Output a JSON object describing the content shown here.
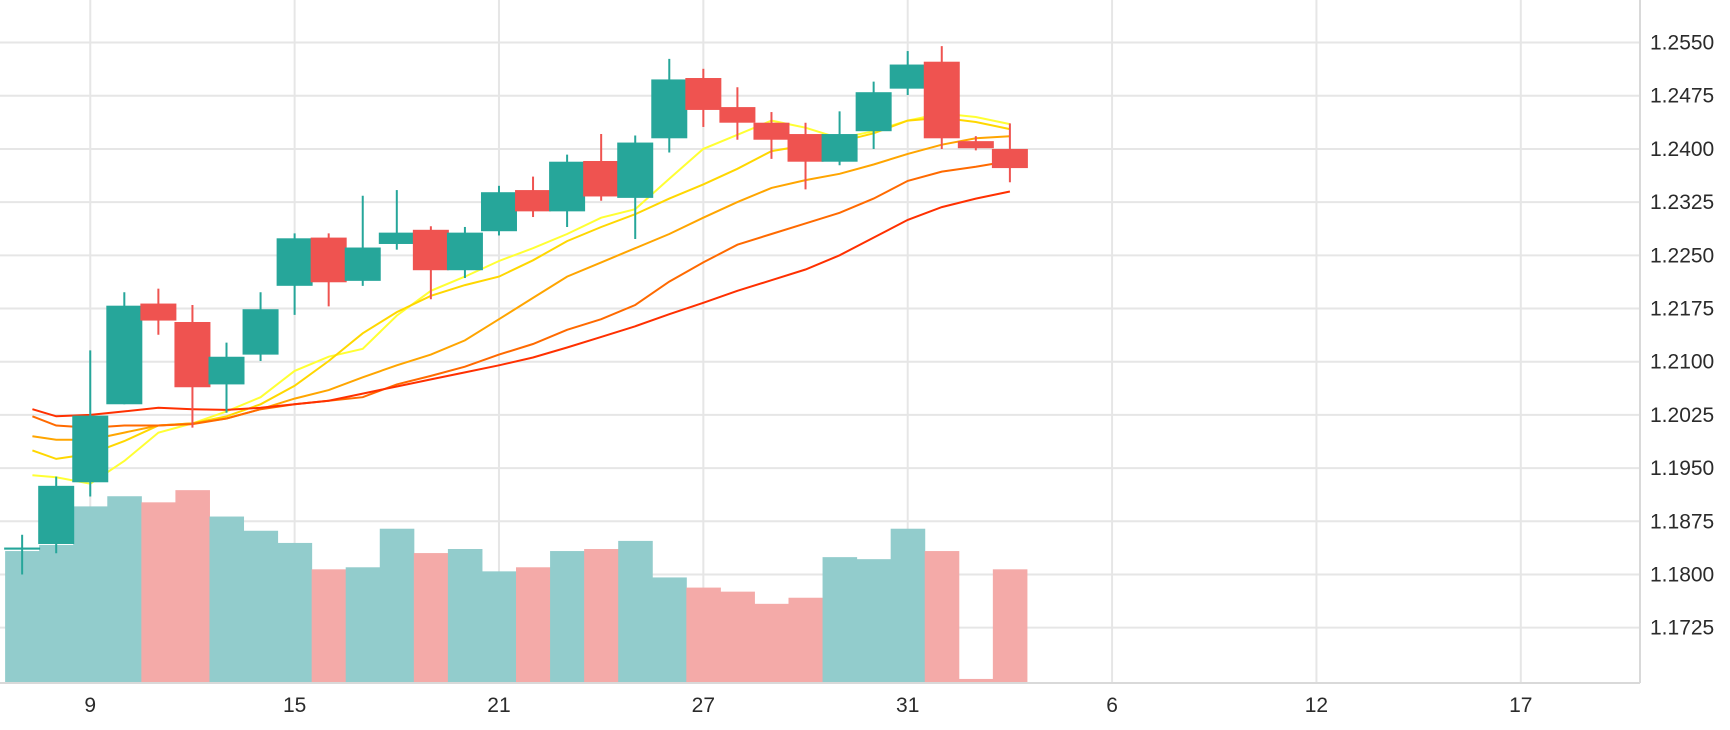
{
  "chart_data": {
    "type": "candlestick",
    "x_tick_labels": [
      "9",
      "15",
      "21",
      "27",
      "31",
      "6",
      "12",
      "17"
    ],
    "x_tick_positions": [
      2,
      8,
      14,
      20,
      26,
      32,
      38,
      44
    ],
    "x_range": [
      -0.65,
      47.5
    ],
    "y_ticks": [
      "1.2550",
      "1.2475",
      "1.2400",
      "1.2325",
      "1.2250",
      "1.2175",
      "1.2100",
      "1.2025",
      "1.1950",
      "1.1875",
      "1.1800",
      "1.1725"
    ],
    "y_range": [
      1.1647,
      1.261
    ],
    "grid": true,
    "colors": {
      "up": "#26a69a",
      "down": "#ef5350",
      "up_volume": "#92cccc",
      "down_volume": "#f4aaa8"
    },
    "candles": [
      {
        "i": 0,
        "open": 1.1835,
        "high": 1.1856,
        "low": 1.18,
        "close": 1.1838
      },
      {
        "i": 1,
        "open": 1.1843,
        "high": 1.1938,
        "low": 1.183,
        "close": 1.1925
      },
      {
        "i": 2,
        "open": 1.193,
        "high": 1.2116,
        "low": 1.191,
        "close": 1.2024
      },
      {
        "i": 3,
        "open": 1.204,
        "high": 1.2198,
        "low": 1.204,
        "close": 1.2179
      },
      {
        "i": 4,
        "open": 1.2182,
        "high": 1.2203,
        "low": 1.2138,
        "close": 1.2158
      },
      {
        "i": 5,
        "open": 1.2156,
        "high": 1.218,
        "low": 1.2007,
        "close": 1.2064
      },
      {
        "i": 6,
        "open": 1.2068,
        "high": 1.2127,
        "low": 1.2028,
        "close": 1.2107
      },
      {
        "i": 7,
        "open": 1.211,
        "high": 1.2198,
        "low": 1.2101,
        "close": 1.2174
      },
      {
        "i": 8,
        "open": 1.2207,
        "high": 1.2281,
        "low": 1.2166,
        "close": 1.2274
      },
      {
        "i": 9,
        "open": 1.2275,
        "high": 1.2281,
        "low": 1.2178,
        "close": 1.2212
      },
      {
        "i": 10,
        "open": 1.2214,
        "high": 1.2334,
        "low": 1.2207,
        "close": 1.2261
      },
      {
        "i": 11,
        "open": 1.2266,
        "high": 1.2342,
        "low": 1.2258,
        "close": 1.2282
      },
      {
        "i": 12,
        "open": 1.2286,
        "high": 1.2291,
        "low": 1.2188,
        "close": 1.2229
      },
      {
        "i": 13,
        "open": 1.2229,
        "high": 1.229,
        "low": 1.2218,
        "close": 1.2282
      },
      {
        "i": 14,
        "open": 1.2284,
        "high": 1.2348,
        "low": 1.2278,
        "close": 1.2339
      },
      {
        "i": 15,
        "open": 1.2342,
        "high": 1.2361,
        "low": 1.2304,
        "close": 1.2312
      },
      {
        "i": 16,
        "open": 1.2312,
        "high": 1.2392,
        "low": 1.229,
        "close": 1.2382
      },
      {
        "i": 17,
        "open": 1.2383,
        "high": 1.2421,
        "low": 1.2327,
        "close": 1.2333
      },
      {
        "i": 18,
        "open": 1.2331,
        "high": 1.2419,
        "low": 1.2273,
        "close": 1.2409
      },
      {
        "i": 19,
        "open": 1.2415,
        "high": 1.2527,
        "low": 1.2395,
        "close": 1.2498
      },
      {
        "i": 20,
        "open": 1.25,
        "high": 1.2513,
        "low": 1.2431,
        "close": 1.2455
      },
      {
        "i": 21,
        "open": 1.2459,
        "high": 1.2487,
        "low": 1.2413,
        "close": 1.2437
      },
      {
        "i": 22,
        "open": 1.2437,
        "high": 1.2452,
        "low": 1.2386,
        "close": 1.2413
      },
      {
        "i": 23,
        "open": 1.2421,
        "high": 1.2437,
        "low": 1.2343,
        "close": 1.2382
      },
      {
        "i": 24,
        "open": 1.2382,
        "high": 1.2453,
        "low": 1.2377,
        "close": 1.2421
      },
      {
        "i": 25,
        "open": 1.2425,
        "high": 1.2495,
        "low": 1.24,
        "close": 1.248
      },
      {
        "i": 26,
        "open": 1.2485,
        "high": 1.2538,
        "low": 1.2476,
        "close": 1.2519
      },
      {
        "i": 27,
        "open": 1.2523,
        "high": 1.2545,
        "low": 1.24,
        "close": 1.2415
      },
      {
        "i": 28,
        "open": 1.2411,
        "high": 1.2418,
        "low": 1.2398,
        "close": 1.2401
      },
      {
        "i": 29,
        "open": 1.24,
        "high": 1.2436,
        "low": 1.2353,
        "close": 1.2373
      }
    ],
    "volume": [
      {
        "i": 0,
        "level": 0.65,
        "dir": "up"
      },
      {
        "i": 1,
        "level": 0.68,
        "dir": "up"
      },
      {
        "i": 2,
        "level": 0.87,
        "dir": "up"
      },
      {
        "i": 3,
        "level": 0.92,
        "dir": "up"
      },
      {
        "i": 4,
        "level": 0.89,
        "dir": "down"
      },
      {
        "i": 5,
        "level": 0.95,
        "dir": "down"
      },
      {
        "i": 6,
        "level": 0.82,
        "dir": "up"
      },
      {
        "i": 7,
        "level": 0.75,
        "dir": "up"
      },
      {
        "i": 8,
        "level": 0.69,
        "dir": "up"
      },
      {
        "i": 9,
        "level": 0.56,
        "dir": "down"
      },
      {
        "i": 10,
        "level": 0.57,
        "dir": "up"
      },
      {
        "i": 11,
        "level": 0.76,
        "dir": "up"
      },
      {
        "i": 12,
        "level": 0.64,
        "dir": "down"
      },
      {
        "i": 13,
        "level": 0.66,
        "dir": "up"
      },
      {
        "i": 14,
        "level": 0.55,
        "dir": "up"
      },
      {
        "i": 15,
        "level": 0.57,
        "dir": "down"
      },
      {
        "i": 16,
        "level": 0.65,
        "dir": "up"
      },
      {
        "i": 17,
        "level": 0.66,
        "dir": "down"
      },
      {
        "i": 18,
        "level": 0.7,
        "dir": "up"
      },
      {
        "i": 19,
        "level": 0.52,
        "dir": "up"
      },
      {
        "i": 20,
        "level": 0.47,
        "dir": "down"
      },
      {
        "i": 21,
        "level": 0.45,
        "dir": "down"
      },
      {
        "i": 22,
        "level": 0.39,
        "dir": "down"
      },
      {
        "i": 23,
        "level": 0.42,
        "dir": "down"
      },
      {
        "i": 24,
        "level": 0.62,
        "dir": "up"
      },
      {
        "i": 25,
        "level": 0.61,
        "dir": "up"
      },
      {
        "i": 26,
        "level": 0.76,
        "dir": "up"
      },
      {
        "i": 27,
        "level": 0.65,
        "dir": "down"
      },
      {
        "i": 28,
        "level": 0.02,
        "dir": "down"
      },
      {
        "i": 29,
        "level": 0.56,
        "dir": "down"
      }
    ],
    "moving_averages": [
      {
        "color": "#ffff33",
        "points": [
          [
            0.3,
            1.194
          ],
          [
            1.0,
            1.1937
          ],
          [
            2.0,
            1.1928
          ],
          [
            3.0,
            1.196
          ],
          [
            4.0,
            1.2
          ],
          [
            5.0,
            1.2013
          ],
          [
            6.0,
            1.203
          ],
          [
            7.0,
            1.205
          ],
          [
            8.0,
            1.2087
          ],
          [
            9.0,
            1.2107
          ],
          [
            10.0,
            1.2118
          ],
          [
            11.0,
            1.2165
          ],
          [
            12.0,
            1.22
          ],
          [
            13.0,
            1.222
          ],
          [
            14.0,
            1.2242
          ],
          [
            15.0,
            1.226
          ],
          [
            16.0,
            1.228
          ],
          [
            17.0,
            1.2303
          ],
          [
            18.0,
            1.2315
          ],
          [
            19.0,
            1.2358
          ],
          [
            20.0,
            1.24
          ],
          [
            21.0,
            1.242
          ],
          [
            22.0,
            1.244
          ],
          [
            23.0,
            1.243
          ],
          [
            24.0,
            1.2415
          ],
          [
            25.0,
            1.2425
          ],
          [
            26.0,
            1.244
          ],
          [
            27.0,
            1.245
          ],
          [
            28.0,
            1.2445
          ],
          [
            29.0,
            1.2435
          ]
        ]
      },
      {
        "color": "#ffd700",
        "points": [
          [
            0.3,
            1.1975
          ],
          [
            1.0,
            1.1963
          ],
          [
            2.0,
            1.197
          ],
          [
            3.0,
            1.1988
          ],
          [
            4.0,
            1.201
          ],
          [
            5.0,
            1.2013
          ],
          [
            6.0,
            1.2023
          ],
          [
            7.0,
            1.204
          ],
          [
            8.0,
            1.2066
          ],
          [
            9.0,
            1.2101
          ],
          [
            10.0,
            1.214
          ],
          [
            11.0,
            1.217
          ],
          [
            12.0,
            1.2193
          ],
          [
            13.0,
            1.2208
          ],
          [
            14.0,
            1.222
          ],
          [
            15.0,
            1.2243
          ],
          [
            16.0,
            1.227
          ],
          [
            17.0,
            1.229
          ],
          [
            18.0,
            1.2308
          ],
          [
            19.0,
            1.233
          ],
          [
            20.0,
            1.235
          ],
          [
            21.0,
            1.2372
          ],
          [
            22.0,
            1.2397
          ],
          [
            23.0,
            1.2405
          ],
          [
            24.0,
            1.241
          ],
          [
            25.0,
            1.2422
          ],
          [
            26.0,
            1.244
          ],
          [
            27.0,
            1.2444
          ],
          [
            28.0,
            1.2438
          ],
          [
            29.0,
            1.2428
          ]
        ]
      },
      {
        "color": "#ffa500",
        "points": [
          [
            0.3,
            1.1995
          ],
          [
            1.0,
            1.199
          ],
          [
            2.0,
            1.199
          ],
          [
            3.0,
            1.2
          ],
          [
            4.0,
            1.201
          ],
          [
            5.0,
            1.2013
          ],
          [
            6.0,
            1.202
          ],
          [
            7.0,
            1.2033
          ],
          [
            8.0,
            1.2048
          ],
          [
            9.0,
            1.206
          ],
          [
            10.0,
            1.2078
          ],
          [
            11.0,
            1.2095
          ],
          [
            12.0,
            1.211
          ],
          [
            13.0,
            1.213
          ],
          [
            14.0,
            1.216
          ],
          [
            15.0,
            1.219
          ],
          [
            16.0,
            1.222
          ],
          [
            17.0,
            1.224
          ],
          [
            18.0,
            1.226
          ],
          [
            19.0,
            1.228
          ],
          [
            20.0,
            1.2303
          ],
          [
            21.0,
            1.2325
          ],
          [
            22.0,
            1.2345
          ],
          [
            23.0,
            1.2356
          ],
          [
            24.0,
            1.2365
          ],
          [
            25.0,
            1.2378
          ],
          [
            26.0,
            1.2393
          ],
          [
            27.0,
            1.2406
          ],
          [
            28.0,
            1.2415
          ],
          [
            29.0,
            1.2418
          ]
        ]
      },
      {
        "color": "#ff6a00",
        "points": [
          [
            0.3,
            1.2023
          ],
          [
            1.0,
            1.201
          ],
          [
            2.0,
            1.2007
          ],
          [
            3.0,
            1.201
          ],
          [
            4.0,
            1.201
          ],
          [
            5.0,
            1.2012
          ],
          [
            6.0,
            1.202
          ],
          [
            7.0,
            1.2033
          ],
          [
            8.0,
            1.204
          ],
          [
            9.0,
            1.2045
          ],
          [
            10.0,
            1.205
          ],
          [
            11.0,
            1.2068
          ],
          [
            12.0,
            1.208
          ],
          [
            13.0,
            1.2093
          ],
          [
            14.0,
            1.211
          ],
          [
            15.0,
            1.2125
          ],
          [
            16.0,
            1.2145
          ],
          [
            17.0,
            1.216
          ],
          [
            18.0,
            1.218
          ],
          [
            19.0,
            1.2213
          ],
          [
            20.0,
            1.224
          ],
          [
            21.0,
            1.2265
          ],
          [
            22.0,
            1.228
          ],
          [
            23.0,
            1.2295
          ],
          [
            24.0,
            1.231
          ],
          [
            25.0,
            1.233
          ],
          [
            26.0,
            1.2355
          ],
          [
            27.0,
            1.2368
          ],
          [
            28.0,
            1.2375
          ],
          [
            29.0,
            1.2383
          ]
        ]
      },
      {
        "color": "#ff3000",
        "points": [
          [
            0.3,
            1.2033
          ],
          [
            1.0,
            1.2023
          ],
          [
            2.0,
            1.2025
          ],
          [
            3.0,
            1.203
          ],
          [
            4.0,
            1.2035
          ],
          [
            5.0,
            1.2033
          ],
          [
            6.0,
            1.2032
          ],
          [
            7.0,
            1.2035
          ],
          [
            8.0,
            1.204
          ],
          [
            9.0,
            1.2045
          ],
          [
            10.0,
            1.2055
          ],
          [
            11.0,
            1.2065
          ],
          [
            12.0,
            1.2075
          ],
          [
            13.0,
            1.2085
          ],
          [
            14.0,
            1.2095
          ],
          [
            15.0,
            1.2106
          ],
          [
            16.0,
            1.212
          ],
          [
            17.0,
            1.2135
          ],
          [
            18.0,
            1.215
          ],
          [
            19.0,
            1.2167
          ],
          [
            20.0,
            1.2183
          ],
          [
            21.0,
            1.22
          ],
          [
            22.0,
            1.2215
          ],
          [
            23.0,
            1.223
          ],
          [
            24.0,
            1.225
          ],
          [
            25.0,
            1.2275
          ],
          [
            26.0,
            1.23
          ],
          [
            27.0,
            1.2318
          ],
          [
            28.0,
            1.233
          ],
          [
            29.0,
            1.234
          ]
        ]
      }
    ]
  }
}
